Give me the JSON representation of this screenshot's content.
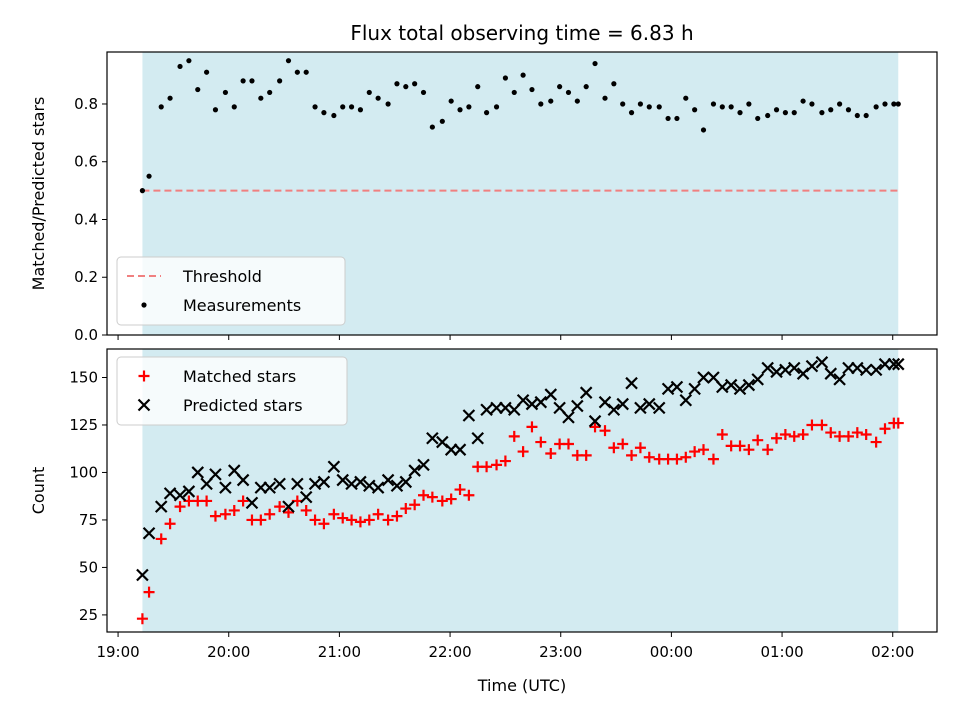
{
  "chart_data": {
    "type": "scatter",
    "title": "Flux total observing time = 6.83 h",
    "xlabel": "Time (UTC)",
    "x_tick_labels": [
      "19:00",
      "20:00",
      "21:00",
      "22:00",
      "23:00",
      "00:00",
      "01:00",
      "02:00"
    ],
    "x_tick_hours": [
      0,
      1,
      2,
      3,
      4,
      5,
      6,
      7
    ],
    "x_range_hours": [
      -0.1,
      7.4
    ],
    "observing_window_hours": [
      0.22,
      7.05
    ],
    "colors": {
      "window": "#d3ebf1",
      "threshold": "#f08080",
      "measurements": "#000000",
      "matched": "#ff0000",
      "predicted": "#000000"
    },
    "panels": [
      {
        "ylabel": "Matched/Predicted stars",
        "ylim": [
          0,
          0.98
        ],
        "y_ticks": [
          0.0,
          0.2,
          0.4,
          0.6,
          0.8
        ],
        "y_tick_labels": [
          "0.0",
          "0.2",
          "0.4",
          "0.6",
          "0.8"
        ],
        "legend_position": "lower-left",
        "series": [
          {
            "name": "Threshold",
            "kind": "dashed-line",
            "x": [
              0.22,
              7.05
            ],
            "y": [
              0.5,
              0.5
            ]
          },
          {
            "name": "Measurements",
            "kind": "dot",
            "x": [
              0.22,
              0.28,
              0.39,
              0.47,
              0.56,
              0.64,
              0.72,
              0.8,
              0.88,
              0.97,
              1.05,
              1.13,
              1.21,
              1.29,
              1.37,
              1.46,
              1.54,
              1.62,
              1.7,
              1.78,
              1.86,
              1.95,
              2.03,
              2.11,
              2.19,
              2.27,
              2.35,
              2.44,
              2.52,
              2.6,
              2.68,
              2.76,
              2.84,
              2.93,
              3.01,
              3.09,
              3.17,
              3.25,
              3.33,
              3.42,
              3.5,
              3.58,
              3.66,
              3.74,
              3.82,
              3.91,
              3.99,
              4.07,
              4.15,
              4.23,
              4.31,
              4.4,
              4.48,
              4.56,
              4.64,
              4.72,
              4.8,
              4.89,
              4.97,
              5.05,
              5.13,
              5.21,
              5.29,
              5.38,
              5.46,
              5.54,
              5.62,
              5.7,
              5.78,
              5.87,
              5.95,
              6.03,
              6.11,
              6.19,
              6.27,
              6.36,
              6.44,
              6.52,
              6.6,
              6.68,
              6.76,
              6.85,
              6.93,
              7.01,
              7.05
            ],
            "y": [
              0.5,
              0.55,
              0.79,
              0.82,
              0.93,
              0.95,
              0.85,
              0.91,
              0.78,
              0.84,
              0.79,
              0.88,
              0.88,
              0.82,
              0.84,
              0.88,
              0.95,
              0.91,
              0.91,
              0.79,
              0.77,
              0.76,
              0.79,
              0.79,
              0.78,
              0.84,
              0.82,
              0.8,
              0.87,
              0.86,
              0.87,
              0.84,
              0.72,
              0.74,
              0.81,
              0.78,
              0.79,
              0.86,
              0.77,
              0.79,
              0.89,
              0.84,
              0.9,
              0.85,
              0.8,
              0.81,
              0.86,
              0.84,
              0.81,
              0.86,
              0.94,
              0.82,
              0.87,
              0.8,
              0.77,
              0.8,
              0.79,
              0.79,
              0.75,
              0.75,
              0.82,
              0.78,
              0.71,
              0.8,
              0.79,
              0.79,
              0.77,
              0.8,
              0.75,
              0.76,
              0.78,
              0.77,
              0.77,
              0.81,
              0.8,
              0.77,
              0.78,
              0.8,
              0.78,
              0.76,
              0.76,
              0.79,
              0.8,
              0.8,
              0.8
            ]
          }
        ]
      },
      {
        "ylabel": "Count",
        "ylim": [
          16,
          165
        ],
        "y_ticks": [
          25,
          50,
          75,
          100,
          125,
          150
        ],
        "y_tick_labels": [
          "25",
          "50",
          "75",
          "100",
          "125",
          "150"
        ],
        "legend_position": "upper-left",
        "series": [
          {
            "name": "Matched stars",
            "kind": "plus",
            "x": [
              0.22,
              0.28,
              0.39,
              0.47,
              0.56,
              0.64,
              0.72,
              0.8,
              0.88,
              0.97,
              1.05,
              1.13,
              1.21,
              1.29,
              1.37,
              1.46,
              1.54,
              1.62,
              1.7,
              1.78,
              1.86,
              1.95,
              2.03,
              2.11,
              2.19,
              2.27,
              2.35,
              2.44,
              2.52,
              2.6,
              2.68,
              2.76,
              2.84,
              2.93,
              3.01,
              3.09,
              3.17,
              3.25,
              3.33,
              3.42,
              3.5,
              3.58,
              3.66,
              3.74,
              3.82,
              3.91,
              3.99,
              4.07,
              4.15,
              4.23,
              4.31,
              4.4,
              4.48,
              4.56,
              4.64,
              4.72,
              4.8,
              4.89,
              4.97,
              5.05,
              5.13,
              5.21,
              5.29,
              5.38,
              5.46,
              5.54,
              5.62,
              5.7,
              5.78,
              5.87,
              5.95,
              6.03,
              6.11,
              6.19,
              6.27,
              6.36,
              6.44,
              6.52,
              6.6,
              6.68,
              6.76,
              6.85,
              6.93,
              7.01,
              7.05
            ],
            "y": [
              23,
              37,
              65,
              73,
              82,
              85,
              85,
              85,
              77,
              78,
              80,
              85,
              75,
              75,
              78,
              82,
              79,
              85,
              80,
              75,
              73,
              78,
              76,
              75,
              74,
              75,
              78,
              75,
              77,
              81,
              83,
              88,
              87,
              85,
              86,
              91,
              88,
              103,
              103,
              104,
              106,
              119,
              111,
              124,
              116,
              110,
              115,
              115,
              109,
              109,
              124,
              122,
              113,
              115,
              109,
              113,
              108,
              107,
              107,
              107,
              108,
              111,
              112,
              107,
              120,
              114,
              114,
              112,
              117,
              112,
              118,
              120,
              119,
              120,
              125,
              125,
              121,
              119,
              119,
              121,
              120,
              116,
              123,
              126,
              126
            ]
          },
          {
            "name": "Predicted stars",
            "kind": "cross",
            "x": [
              0.22,
              0.28,
              0.39,
              0.47,
              0.56,
              0.64,
              0.72,
              0.8,
              0.88,
              0.97,
              1.05,
              1.13,
              1.21,
              1.29,
              1.37,
              1.46,
              1.54,
              1.62,
              1.7,
              1.78,
              1.86,
              1.95,
              2.03,
              2.11,
              2.19,
              2.27,
              2.35,
              2.44,
              2.52,
              2.6,
              2.68,
              2.76,
              2.84,
              2.93,
              3.01,
              3.09,
              3.17,
              3.25,
              3.33,
              3.42,
              3.5,
              3.58,
              3.66,
              3.74,
              3.82,
              3.91,
              3.99,
              4.07,
              4.15,
              4.23,
              4.31,
              4.4,
              4.48,
              4.56,
              4.64,
              4.72,
              4.8,
              4.89,
              4.97,
              5.05,
              5.13,
              5.21,
              5.29,
              5.38,
              5.46,
              5.54,
              5.62,
              5.7,
              5.78,
              5.87,
              5.95,
              6.03,
              6.11,
              6.19,
              6.27,
              6.36,
              6.44,
              6.52,
              6.6,
              6.68,
              6.76,
              6.85,
              6.93,
              7.01,
              7.05
            ],
            "y": [
              46,
              68,
              82,
              89,
              88,
              90,
              100,
              94,
              99,
              92,
              101,
              96,
              84,
              92,
              92,
              94,
              82,
              94,
              87,
              94,
              95,
              103,
              96,
              94,
              95,
              93,
              92,
              96,
              93,
              95,
              101,
              104,
              118,
              116,
              112,
              112,
              130,
              118,
              133,
              134,
              134,
              133,
              138,
              136,
              137,
              141,
              134,
              129,
              135,
              142,
              127,
              137,
              133,
              136,
              147,
              134,
              136,
              134,
              144,
              145,
              138,
              144,
              150,
              150,
              145,
              146,
              144,
              146,
              149,
              155,
              153,
              154,
              155,
              152,
              156,
              158,
              152,
              149,
              155,
              155,
              154,
              154,
              157,
              157,
              157
            ]
          }
        ]
      }
    ]
  }
}
